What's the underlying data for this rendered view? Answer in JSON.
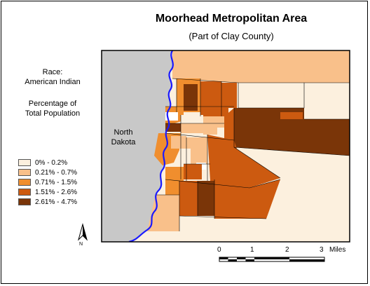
{
  "title": "Moorhead Metropolitan Area",
  "subtitle": "(Part of Clay County)",
  "legend": {
    "heading1": "Race:",
    "heading2": "American Indian",
    "heading3": "Percentage of",
    "heading4": "Total Population",
    "classes": [
      {
        "label": "0% - 0.2%",
        "color": "#fcf0de"
      },
      {
        "label": "0.21% - 0.7%",
        "color": "#f9c08a"
      },
      {
        "label": "0.71% - 1.5%",
        "color": "#f08e2e"
      },
      {
        "label": "1.51% - 2.6%",
        "color": "#cc5a10"
      },
      {
        "label": "2.61% - 4.7%",
        "color": "#7a3508"
      }
    ]
  },
  "map_labels": {
    "state_line1": "North",
    "state_line2": "Dakota"
  },
  "north_arrow": "N",
  "scale_bar": {
    "ticks": [
      "0",
      "1",
      "2",
      "3"
    ],
    "unit": "Miles"
  },
  "colors": {
    "north_dakota": "#c8c8c8",
    "river": "#1a1aff",
    "border": "#000000"
  }
}
